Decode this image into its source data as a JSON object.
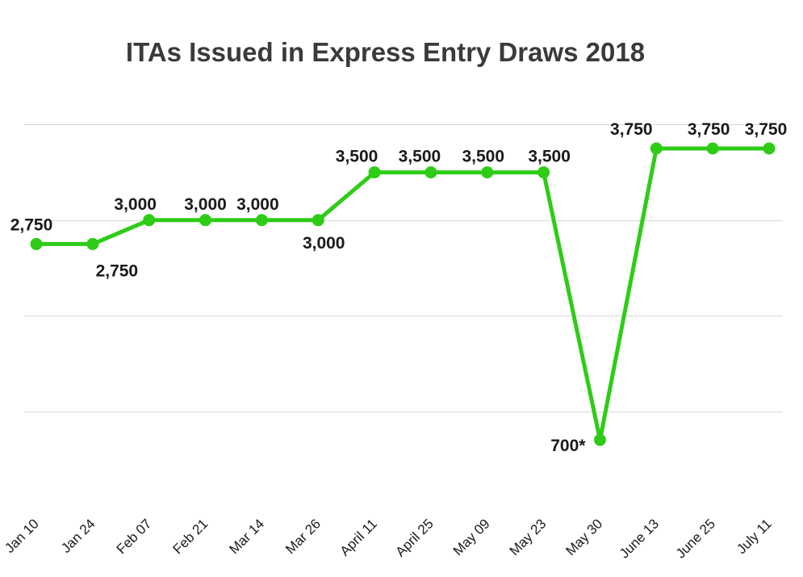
{
  "chart_data": {
    "type": "line",
    "title": "ITAs Issued in Express Entry Draws 2018",
    "xlabel": "",
    "ylabel": "",
    "categories": [
      "Jan 10",
      "Jan 24",
      "Feb 07",
      "Feb 21",
      "Mar 14",
      "Mar 26",
      "April 11",
      "April 25",
      "May 09",
      "May 23",
      "May 30",
      "June 13",
      "June 25",
      "July 11"
    ],
    "series": [
      {
        "values": [
          2750,
          2750,
          3000,
          3000,
          3000,
          3000,
          3500,
          3500,
          3500,
          3500,
          700,
          3750,
          3750,
          3750
        ]
      }
    ],
    "data_labels": [
      "2,750",
      "2,750",
      "3,000",
      "3,000",
      "3,000",
      "3,000",
      "3,500",
      "3,500",
      "3,500",
      "3,500",
      "700*",
      "3,750",
      "3,750",
      "3,750"
    ],
    "ylim": [
      0,
      4000
    ],
    "grid": true,
    "legend": "none",
    "line_color": "#2ecc17"
  }
}
